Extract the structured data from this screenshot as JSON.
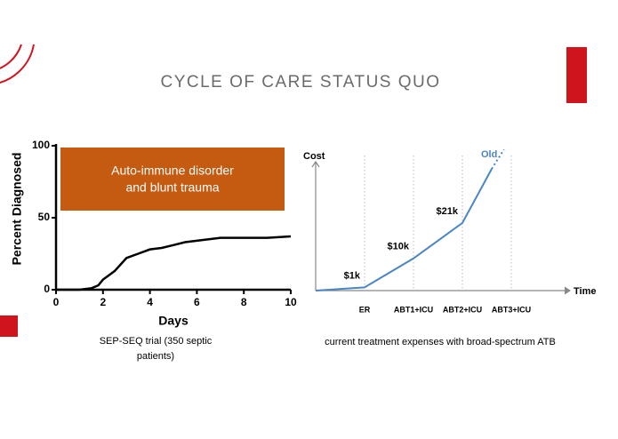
{
  "slide": {
    "title": "CYCLE OF CARE STATUS QUO",
    "captions": [
      "SEP-SEQ trial (350 septic patients)",
      "current treatment expenses with broad-spectrum ATB"
    ]
  },
  "chart_data": [
    {
      "type": "line",
      "xlabel": "Days",
      "ylabel": "Percent Diagnosed",
      "annotation": [
        "Auto-immune disorder",
        "and blunt trauma"
      ],
      "x": [
        0,
        1,
        1.5,
        1.8,
        2,
        2.5,
        3,
        3.5,
        4,
        4.5,
        5,
        5.5,
        6,
        7,
        8,
        9,
        10
      ],
      "values": [
        0,
        0,
        1,
        3,
        7,
        13,
        22,
        25,
        28,
        29,
        31,
        33,
        34,
        36,
        36,
        36,
        37
      ],
      "color": "#000000",
      "xlim": [
        0,
        10
      ],
      "ylim": [
        0,
        100
      ],
      "xticks": [
        0,
        2,
        4,
        6,
        8,
        10
      ],
      "yticks": [
        0,
        50,
        100
      ]
    },
    {
      "type": "line",
      "xlabel": "Time",
      "ylabel": "Cost",
      "xlim": [
        0,
        5.2
      ],
      "ylim": [
        0,
        40000
      ],
      "xticks": [
        {
          "value": 1,
          "label": "ER"
        },
        {
          "value": 2,
          "label": "ABT1+ICU"
        },
        {
          "value": 3,
          "label": "ABT2+ICU"
        },
        {
          "value": 4,
          "label": "ABT3+ICU"
        }
      ],
      "grid": true,
      "series": [
        {
          "name": "Old",
          "color": "#4a86c5",
          "x": [
            0,
            1,
            2,
            3,
            3.6
          ],
          "values": [
            0,
            1000,
            10000,
            21000,
            37800
          ],
          "value_labels": [
            null,
            "$1k",
            "$10k",
            "$21k",
            null
          ]
        },
        {
          "color": "#4a86c5",
          "style": "dotted",
          "x": [
            3.6,
            3.85
          ],
          "values": [
            37800,
            43800
          ]
        }
      ]
    }
  ]
}
